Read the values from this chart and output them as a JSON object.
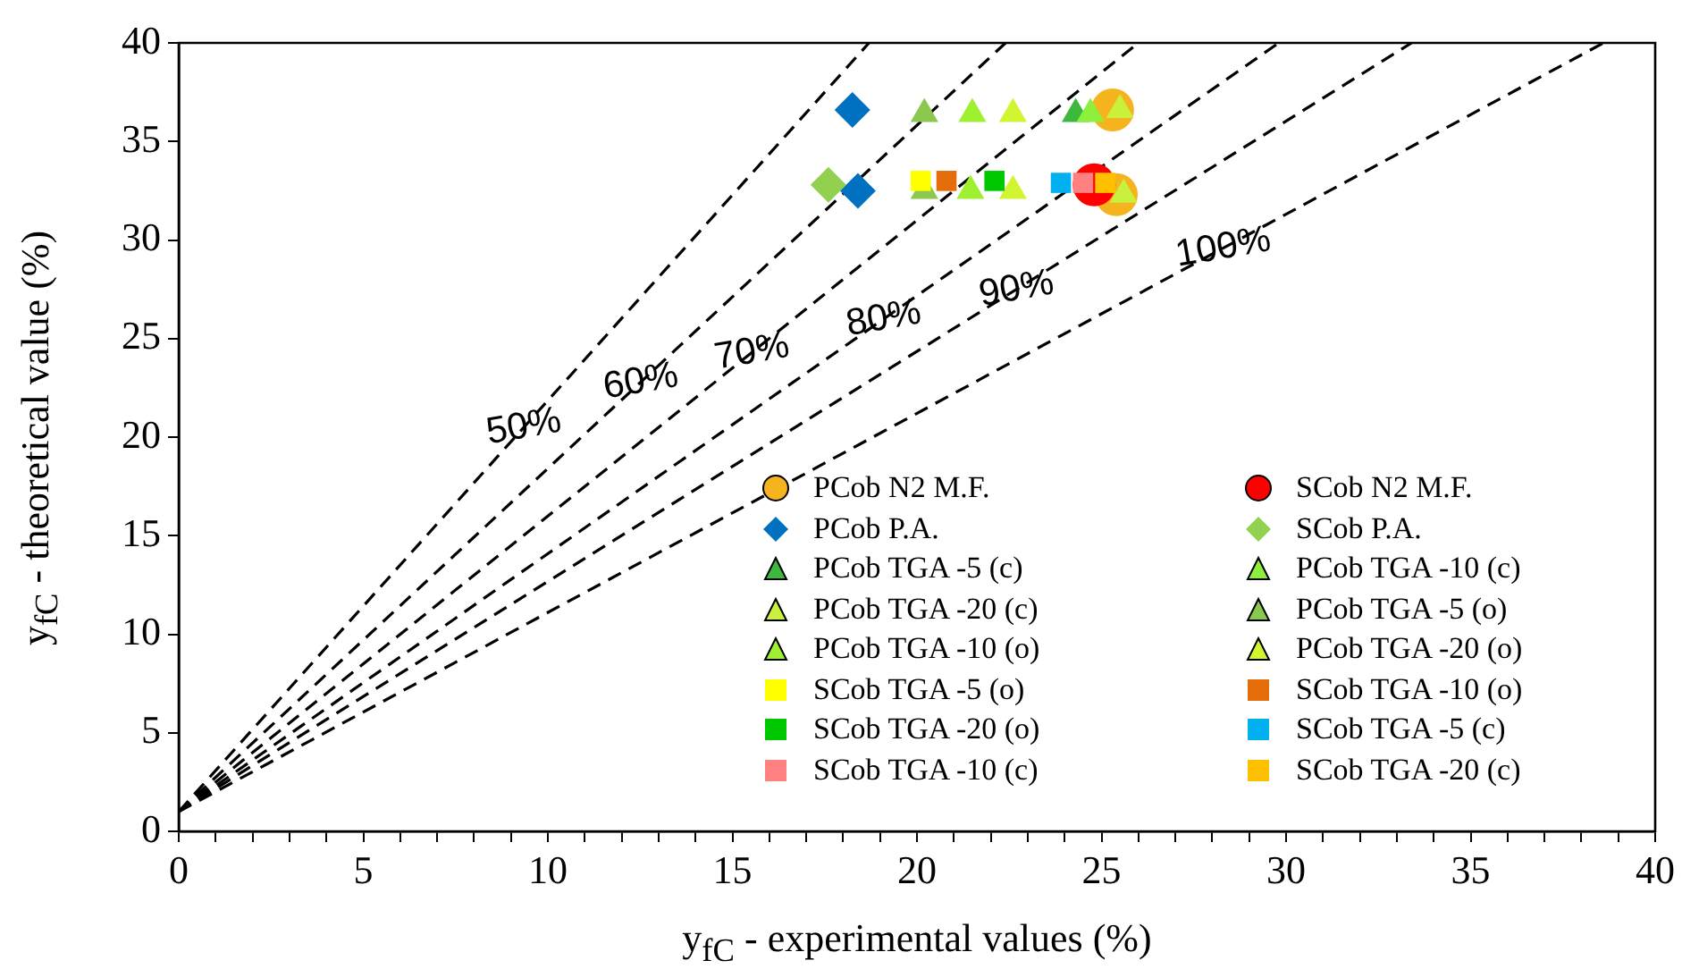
{
  "chart_data": {
    "type": "scatter",
    "xlabel": "y$_{fC}$ - experimental values (%)",
    "ylabel": "y$_{fC}$ - theoretical value (%)",
    "xlim": [
      0,
      40
    ],
    "ylim": [
      0,
      40
    ],
    "xticks": [
      0,
      {
        "value": 1,
        "label": null
      },
      {
        "value": 2,
        "label": null
      },
      {
        "value": 3,
        "label": null
      },
      {
        "value": 4,
        "label": null
      },
      5,
      {
        "value": 6,
        "label": null
      },
      {
        "value": 7,
        "label": null
      },
      {
        "value": 8,
        "label": null
      },
      {
        "value": 9,
        "label": null
      },
      10,
      {
        "value": 11,
        "label": null
      },
      {
        "value": 12,
        "label": null
      },
      {
        "value": 13,
        "label": null
      },
      {
        "value": 14,
        "label": null
      },
      15,
      {
        "value": 16,
        "label": null
      },
      {
        "value": 17,
        "label": null
      },
      {
        "value": 18,
        "label": null
      },
      {
        "value": 19,
        "label": null
      },
      20,
      {
        "value": 21,
        "label": null
      },
      {
        "value": 22,
        "label": null
      },
      {
        "value": 23,
        "label": null
      },
      {
        "value": 24,
        "label": null
      },
      25,
      {
        "value": 26,
        "label": null
      },
      {
        "value": 27,
        "label": null
      },
      {
        "value": 28,
        "label": null
      },
      {
        "value": 29,
        "label": null
      },
      30,
      {
        "value": 31,
        "label": null
      },
      {
        "value": 32,
        "label": null
      },
      {
        "value": 33,
        "label": null
      },
      {
        "value": 34,
        "label": null
      },
      35,
      {
        "value": 36,
        "label": null
      },
      {
        "value": 37,
        "label": null
      },
      {
        "value": 38,
        "label": null
      },
      {
        "value": 39,
        "label": null
      },
      40
    ],
    "yticks": [
      0,
      5,
      10,
      15,
      20,
      25,
      30,
      35,
      40
    ],
    "grid": false,
    "legend": "bottom right",
    "series": [
      {
        "type": "line",
        "color": "#000000",
        "line_style": "dashed",
        "marker": "none",
        "x": [
          0,
          18.7
        ],
        "values": [
          1,
          40
        ]
      },
      {
        "type": "line",
        "color": "#000000",
        "line_style": "dashed",
        "marker": "none",
        "x": [
          0,
          22.4
        ],
        "values": [
          1,
          40
        ]
      },
      {
        "type": "line",
        "color": "#000000",
        "line_style": "dashed",
        "marker": "none",
        "x": [
          0,
          26
        ],
        "values": [
          1,
          40
        ]
      },
      {
        "type": "line",
        "color": "#000000",
        "line_style": "dashed",
        "marker": "none",
        "x": [
          0,
          29.8
        ],
        "values": [
          1,
          40
        ]
      },
      {
        "type": "line",
        "color": "#000000",
        "line_style": "dashed",
        "marker": "none",
        "x": [
          0,
          33.4
        ],
        "values": [
          1,
          40
        ]
      },
      {
        "type": "line",
        "color": "#000000",
        "line_style": "dashed",
        "marker": "none",
        "x": [
          0,
          38.6
        ],
        "values": [
          1,
          40
        ]
      },
      {
        "name": "PCob N2 M.F.",
        "color": "#f5b41e",
        "marker": "circle",
        "x": [
          25.3,
          25.4
        ],
        "values": [
          36.6,
          32.3
        ]
      },
      {
        "name": "SCob N2 M.F.",
        "color": "#ff0000",
        "marker": "circle",
        "x": [
          24.8
        ],
        "values": [
          32.8
        ]
      },
      {
        "name": "PCob P.A.",
        "color": "#0070c0",
        "marker": "diamond",
        "x": [
          18.25,
          18.4
        ],
        "values": [
          36.6,
          32.5
        ]
      },
      {
        "name": "SCob P.A.",
        "color": "#92d050",
        "marker": "diamond",
        "x": [
          17.6
        ],
        "values": [
          32.8
        ]
      },
      {
        "name": "PCob TGA -5 (c)",
        "color": "#3cb83c",
        "marker": "triangle",
        "x": [
          24.3
        ],
        "values": [
          36.4
        ]
      },
      {
        "name": "PCob TGA -10 (c)",
        "color": "#8cf03c",
        "marker": "triangle",
        "x": [
          24.7
        ],
        "values": [
          36.4
        ]
      },
      {
        "name": "PCob TGA -20 (c)",
        "color": "#c8f03c",
        "marker": "triangle",
        "x": [
          25.5,
          25.6
        ],
        "values": [
          36.6,
          32.3
        ]
      },
      {
        "name": "PCob TGA -5 (o)",
        "color": "#8cc850",
        "marker": "triangle",
        "x": [
          20.2,
          20.2
        ],
        "values": [
          36.4,
          32.5
        ]
      },
      {
        "name": "PCob TGA -10 (o)",
        "color": "#a0f032",
        "marker": "triangle",
        "x": [
          21.5,
          21.45
        ],
        "values": [
          36.4,
          32.5
        ]
      },
      {
        "name": "PCob TGA -20 (o)",
        "color": "#d2f532",
        "marker": "triangle",
        "x": [
          22.6,
          22.6
        ],
        "values": [
          36.4,
          32.5
        ]
      },
      {
        "name": "SCob TGA -5 (o)",
        "color": "#ffff00",
        "marker": "square",
        "x": [
          20.1
        ],
        "values": [
          33
        ]
      },
      {
        "name": "SCob TGA -10 (o)",
        "color": "#e46c0a",
        "marker": "square",
        "x": [
          20.8
        ],
        "values": [
          33
        ]
      },
      {
        "name": "SCob TGA -20 (o)",
        "color": "#00c800",
        "marker": "square",
        "x": [
          22.1
        ],
        "values": [
          33
        ]
      },
      {
        "name": "SCob TGA -5 (c)",
        "color": "#00b0f0",
        "marker": "square",
        "x": [
          23.9
        ],
        "values": [
          32.9
        ]
      },
      {
        "name": "SCob TGA -10 (c)",
        "color": "#ff8080",
        "marker": "square",
        "x": [
          24.5
        ],
        "values": [
          32.9
        ]
      },
      {
        "name": "SCob TGA -20 (c)",
        "color": "#ffc000",
        "marker": "square",
        "x": [
          25.1
        ],
        "values": [
          32.9
        ]
      }
    ],
    "annotations": [
      {
        "text": "50%",
        "x": 9.35,
        "y": 20.5
      },
      {
        "text": "60%",
        "x": 12.52,
        "y": 22.8
      },
      {
        "text": "70%",
        "x": 15.53,
        "y": 24.3
      },
      {
        "text": "80%",
        "x": 19.1,
        "y": 26
      },
      {
        "text": "90%",
        "x": 22.7,
        "y": 27.5
      },
      {
        "text": "100%",
        "x": 28.3,
        "y": 29.6
      }
    ]
  }
}
